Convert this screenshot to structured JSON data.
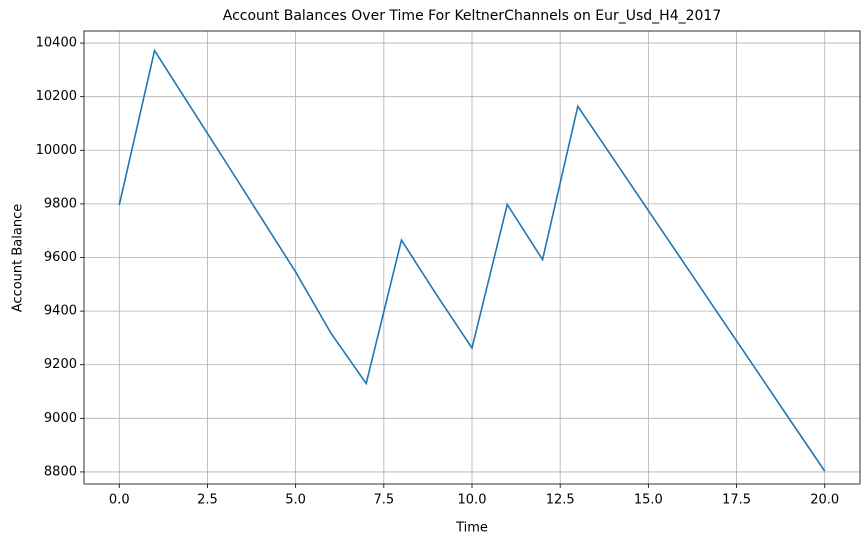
{
  "chart_data": {
    "type": "line",
    "title": "Account Balances Over Time For KeltnerChannels on Eur_Usd_H4_2017",
    "x_label": "Time",
    "y_label": "Account Balance",
    "x": [
      0,
      1,
      2,
      3,
      4,
      5,
      6,
      7,
      8,
      9,
      10,
      11,
      12,
      13,
      14,
      15,
      16,
      17,
      18,
      19,
      20
    ],
    "series": [
      {
        "name": "Account Balance",
        "color": "#1f77b4",
        "values": [
          9796,
          10372,
          10166,
          9960,
          9753,
          9546,
          9318,
          9130,
          9665,
          9460,
          9262,
          9798,
          9592,
          10164,
          9970,
          9775,
          9581,
          9386,
          9192,
          8997,
          8803
        ]
      }
    ],
    "xlim": [
      -1,
      21
    ],
    "xticks": [
      {
        "value": 0,
        "label": "0.0"
      },
      {
        "value": 2.5,
        "label": "2.5"
      },
      {
        "value": 5,
        "label": "5.0"
      },
      {
        "value": 7.5,
        "label": "7.5"
      },
      {
        "value": 10,
        "label": "10.0"
      },
      {
        "value": 12.5,
        "label": "12.5"
      },
      {
        "value": 15,
        "label": "15.0"
      },
      {
        "value": 17.5,
        "label": "17.5"
      },
      {
        "value": 20,
        "label": "20.0"
      }
    ],
    "ylim": [
      8755,
      10445
    ],
    "yticks": [
      8800,
      9000,
      9200,
      9400,
      9600,
      9800,
      10000,
      10200,
      10400
    ],
    "grid": true
  }
}
